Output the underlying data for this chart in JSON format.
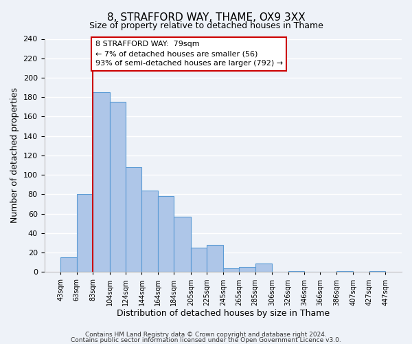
{
  "title": "8, STRAFFORD WAY, THAME, OX9 3XX",
  "subtitle": "Size of property relative to detached houses in Thame",
  "xlabel": "Distribution of detached houses by size in Thame",
  "ylabel": "Number of detached properties",
  "bar_left_edges": [
    43,
    63,
    83,
    104,
    124,
    144,
    164,
    184,
    205,
    225,
    245,
    265,
    285,
    306,
    326,
    346,
    366,
    386,
    407,
    427
  ],
  "bar_heights": [
    15,
    80,
    185,
    175,
    108,
    84,
    78,
    57,
    25,
    28,
    4,
    5,
    9,
    0,
    1,
    0,
    0,
    1,
    0,
    1
  ],
  "bar_widths": [
    20,
    20,
    21,
    20,
    20,
    20,
    20,
    21,
    20,
    20,
    20,
    20,
    21,
    20,
    20,
    20,
    20,
    21,
    20,
    20
  ],
  "bar_color": "#aec6e8",
  "bar_edge_color": "#5b9bd5",
  "tick_labels": [
    "43sqm",
    "63sqm",
    "83sqm",
    "104sqm",
    "124sqm",
    "144sqm",
    "164sqm",
    "184sqm",
    "205sqm",
    "225sqm",
    "245sqm",
    "265sqm",
    "285sqm",
    "306sqm",
    "326sqm",
    "346sqm",
    "366sqm",
    "386sqm",
    "407sqm",
    "427sqm",
    "447sqm"
  ],
  "vline_x": 83,
  "vline_color": "#cc0000",
  "ylim": [
    0,
    240
  ],
  "yticks": [
    0,
    20,
    40,
    60,
    80,
    100,
    120,
    140,
    160,
    180,
    200,
    220,
    240
  ],
  "annotation_title": "8 STRAFFORD WAY:  79sqm",
  "annotation_line1": "← 7% of detached houses are smaller (56)",
  "annotation_line2": "93% of semi-detached houses are larger (792) →",
  "footer1": "Contains HM Land Registry data © Crown copyright and database right 2024.",
  "footer2": "Contains public sector information licensed under the Open Government Licence v3.0.",
  "background_color": "#eef2f8",
  "grid_color": "#ffffff",
  "fig_width": 6.0,
  "fig_height": 5.0
}
